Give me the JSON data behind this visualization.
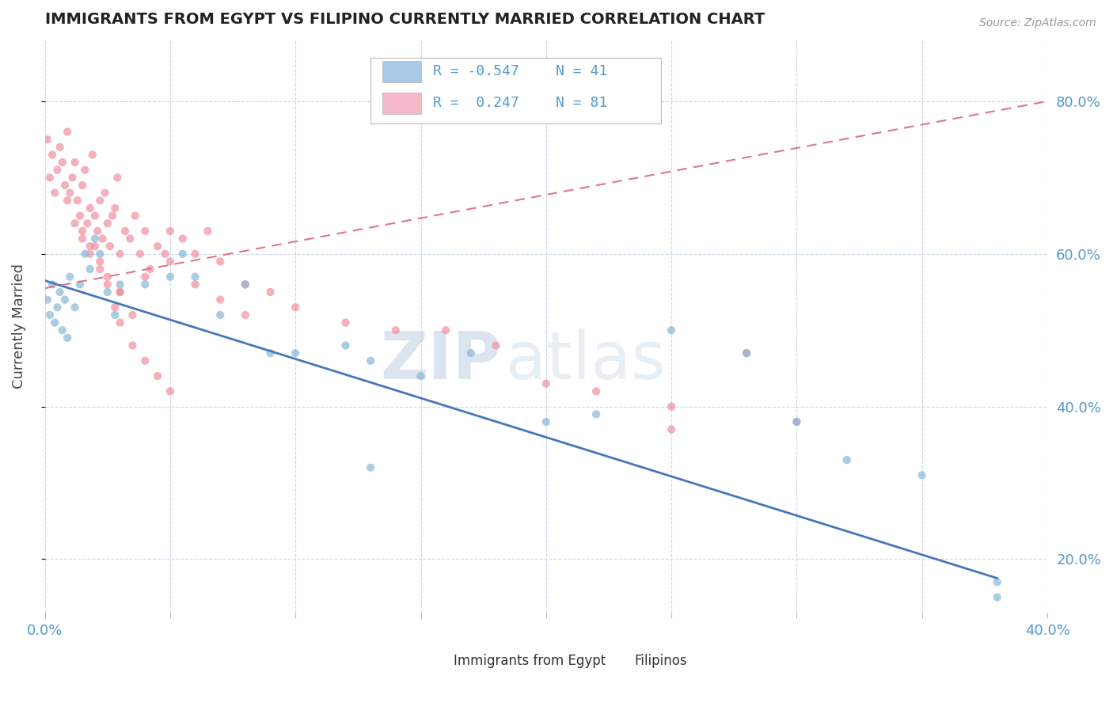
{
  "title": "IMMIGRANTS FROM EGYPT VS FILIPINO CURRENTLY MARRIED CORRELATION CHART",
  "source": "Source: ZipAtlas.com",
  "ylabel": "Currently Married",
  "xlim": [
    0.0,
    0.4
  ],
  "ylim": [
    0.13,
    0.88
  ],
  "xticks": [
    0.0,
    0.05,
    0.1,
    0.15,
    0.2,
    0.25,
    0.3,
    0.35,
    0.4
  ],
  "yticks": [
    0.2,
    0.4,
    0.6,
    0.8
  ],
  "legend_entries": [
    {
      "label": "R = -0.547",
      "n": "N = 41",
      "color": "#aac8e8"
    },
    {
      "label": "R =  0.247",
      "n": "N = 81",
      "color": "#f4b8c8"
    }
  ],
  "egypt_color": "#88b8d8",
  "filipino_color": "#f090a0",
  "egypt_line_color": "#4477bb",
  "filipino_line_color": "#dd7788",
  "watermark_zip": "ZIP",
  "watermark_atlas": "atlas",
  "egypt_points_x": [
    0.001,
    0.002,
    0.003,
    0.004,
    0.005,
    0.006,
    0.007,
    0.008,
    0.009,
    0.01,
    0.012,
    0.014,
    0.016,
    0.018,
    0.02,
    0.022,
    0.025,
    0.028,
    0.03,
    0.04,
    0.05,
    0.055,
    0.06,
    0.07,
    0.08,
    0.09,
    0.1,
    0.12,
    0.13,
    0.15,
    0.17,
    0.2,
    0.22,
    0.25,
    0.28,
    0.3,
    0.32,
    0.35,
    0.38,
    0.38,
    0.13
  ],
  "egypt_points_y": [
    0.54,
    0.52,
    0.56,
    0.51,
    0.53,
    0.55,
    0.5,
    0.54,
    0.49,
    0.57,
    0.53,
    0.56,
    0.6,
    0.58,
    0.62,
    0.6,
    0.55,
    0.52,
    0.56,
    0.56,
    0.57,
    0.6,
    0.57,
    0.52,
    0.56,
    0.47,
    0.47,
    0.48,
    0.46,
    0.44,
    0.47,
    0.38,
    0.39,
    0.5,
    0.47,
    0.38,
    0.33,
    0.31,
    0.17,
    0.15,
    0.32
  ],
  "filipino_points_x": [
    0.001,
    0.002,
    0.003,
    0.004,
    0.005,
    0.006,
    0.007,
    0.008,
    0.009,
    0.01,
    0.011,
    0.012,
    0.013,
    0.014,
    0.015,
    0.016,
    0.017,
    0.018,
    0.019,
    0.02,
    0.021,
    0.022,
    0.023,
    0.024,
    0.025,
    0.026,
    0.027,
    0.028,
    0.029,
    0.03,
    0.032,
    0.034,
    0.036,
    0.038,
    0.04,
    0.042,
    0.045,
    0.048,
    0.05,
    0.055,
    0.06,
    0.065,
    0.07,
    0.08,
    0.09,
    0.1,
    0.12,
    0.14,
    0.16,
    0.18,
    0.2,
    0.22,
    0.25,
    0.28,
    0.3,
    0.25,
    0.03,
    0.04,
    0.05,
    0.06,
    0.07,
    0.08,
    0.009,
    0.012,
    0.015,
    0.018,
    0.022,
    0.025,
    0.028,
    0.03,
    0.035,
    0.04,
    0.045,
    0.05,
    0.02,
    0.015,
    0.022,
    0.018,
    0.025,
    0.03,
    0.035
  ],
  "filipino_points_y": [
    0.75,
    0.7,
    0.73,
    0.68,
    0.71,
    0.74,
    0.72,
    0.69,
    0.76,
    0.68,
    0.7,
    0.72,
    0.67,
    0.65,
    0.69,
    0.71,
    0.64,
    0.66,
    0.73,
    0.65,
    0.63,
    0.67,
    0.62,
    0.68,
    0.64,
    0.61,
    0.65,
    0.66,
    0.7,
    0.6,
    0.63,
    0.62,
    0.65,
    0.6,
    0.63,
    0.58,
    0.61,
    0.6,
    0.63,
    0.62,
    0.6,
    0.63,
    0.59,
    0.56,
    0.55,
    0.53,
    0.51,
    0.5,
    0.5,
    0.48,
    0.43,
    0.42,
    0.4,
    0.47,
    0.38,
    0.37,
    0.55,
    0.57,
    0.59,
    0.56,
    0.54,
    0.52,
    0.67,
    0.64,
    0.62,
    0.6,
    0.58,
    0.56,
    0.53,
    0.51,
    0.48,
    0.46,
    0.44,
    0.42,
    0.61,
    0.63,
    0.59,
    0.61,
    0.57,
    0.55,
    0.52
  ],
  "egypt_trend_x0": 0.0,
  "egypt_trend_y0": 0.565,
  "egypt_trend_x1": 0.38,
  "egypt_trend_y1": 0.175,
  "filipino_trend_x0": 0.0,
  "filipino_trend_y0": 0.555,
  "filipino_trend_x1": 0.4,
  "filipino_trend_y1": 0.8
}
